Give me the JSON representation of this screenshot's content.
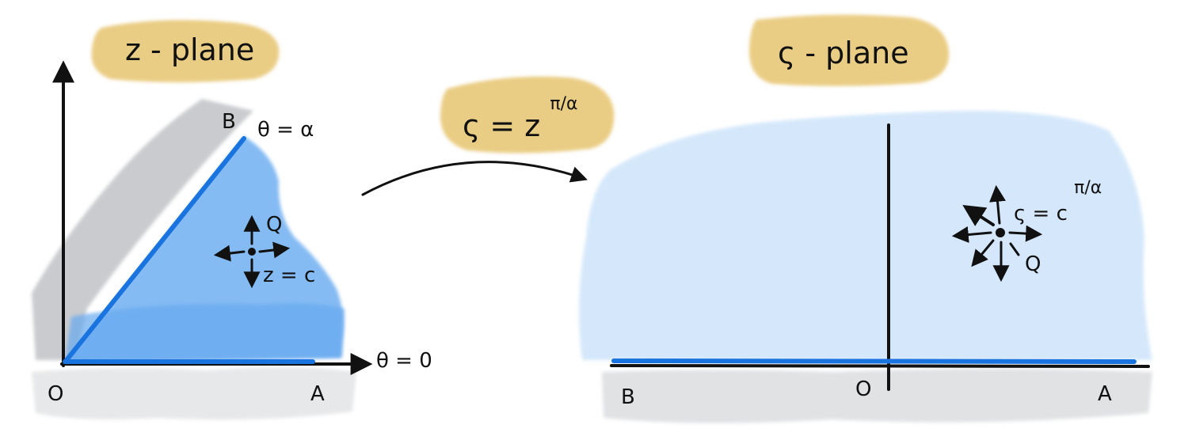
{
  "colors": {
    "title_highlight": "#e8c877",
    "wedge_blue": "#7fb8f3",
    "light_blue": "#d3e7fb",
    "grey_shade": "#c7c9cc",
    "edge_blue": "#1a74e0",
    "ink": "#111111"
  },
  "z_plane": {
    "title": "z - plane",
    "label_B": "B",
    "label_theta_alpha": "θ = α",
    "label_Q": "Q",
    "label_z_c": "z = c",
    "label_O": "O",
    "label_A": "A",
    "label_theta_zero": "θ = 0"
  },
  "mapping": {
    "formula_base": "ς = z",
    "formula_exponent": "π/α"
  },
  "zeta_plane": {
    "title": "ς - plane",
    "label_zeta_c": "ς = c",
    "label_zeta_exp": "π/α",
    "label_Q": "Q",
    "label_B": "B",
    "label_O": "O",
    "label_A": "A"
  }
}
